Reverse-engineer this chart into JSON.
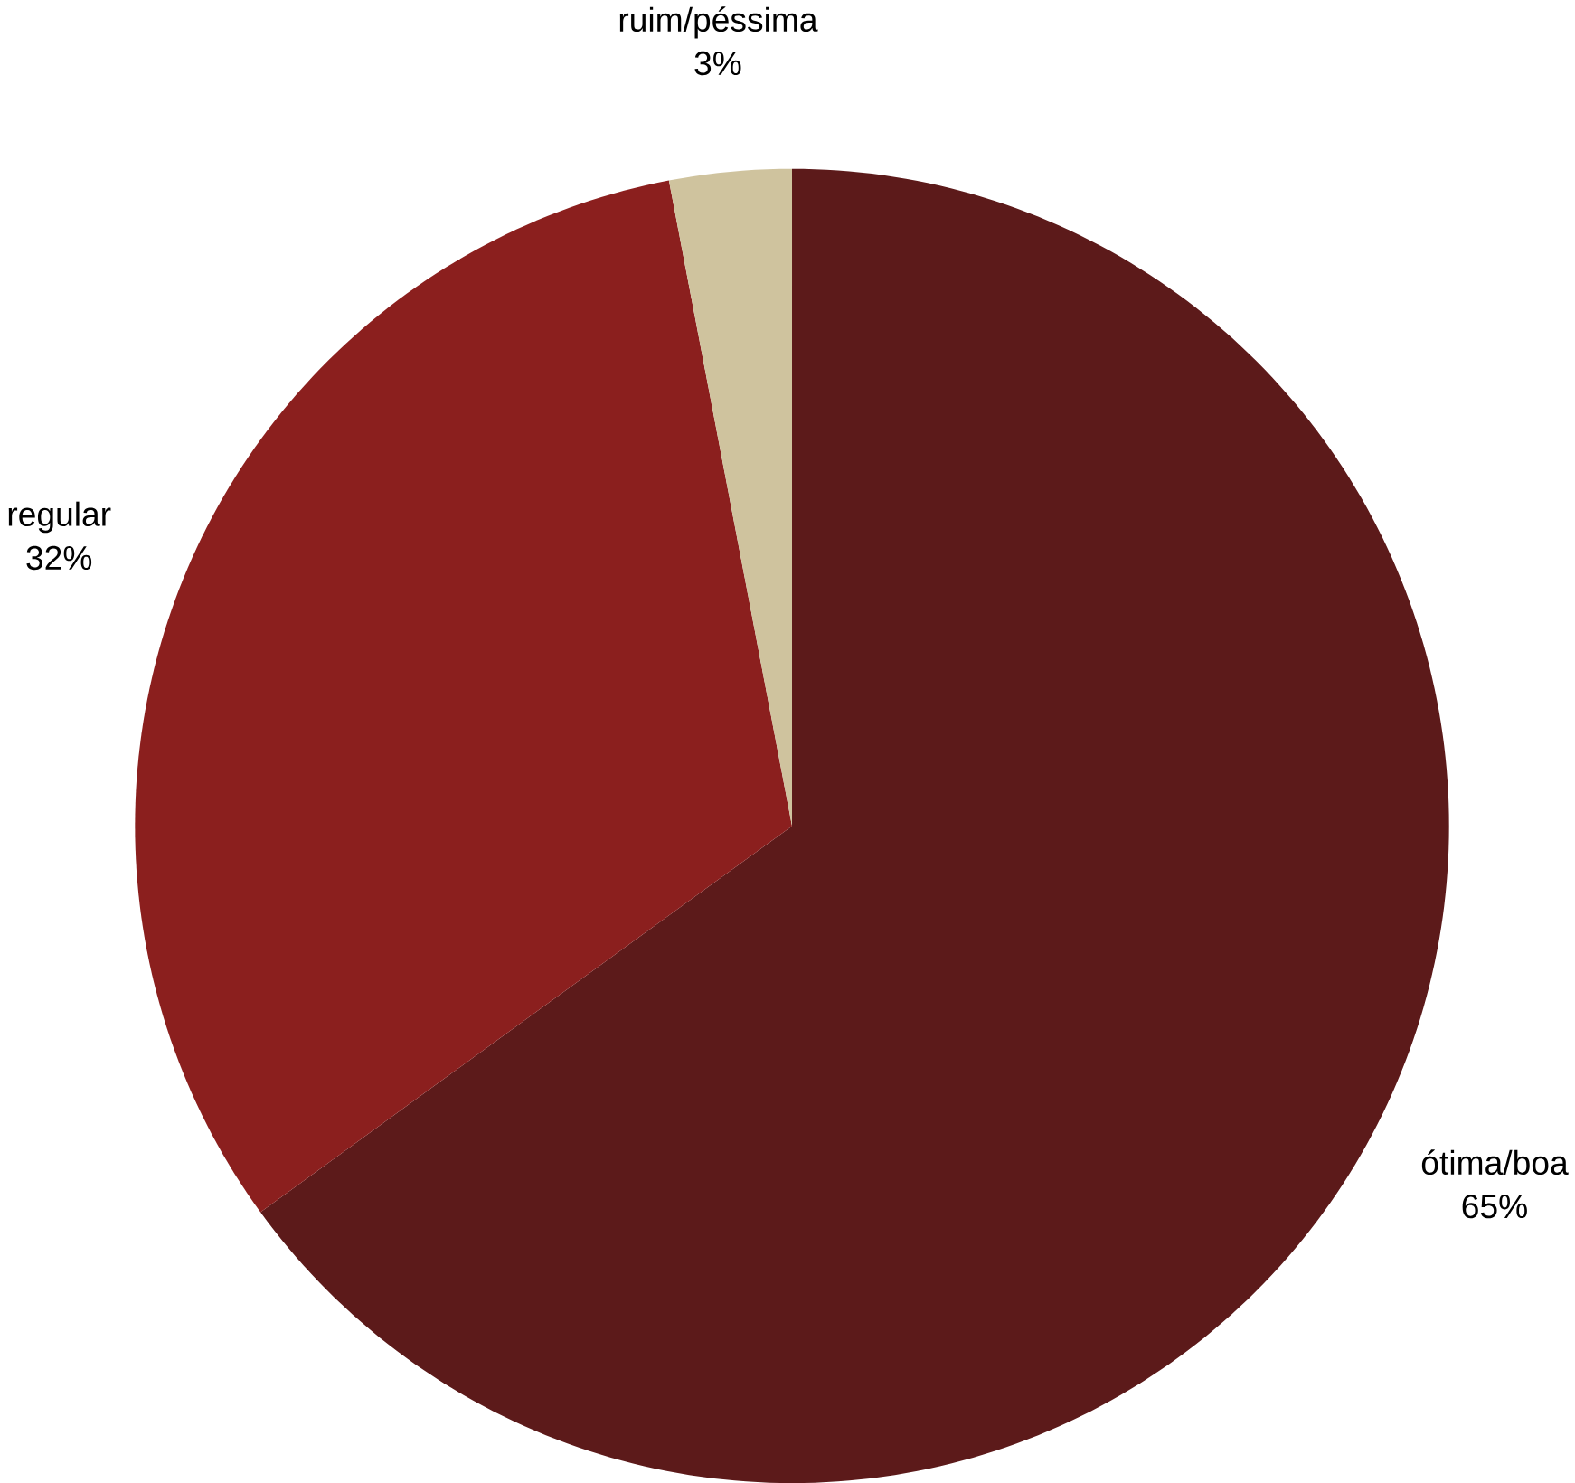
{
  "chart_data": {
    "type": "pie",
    "categories": [
      "ótima/boa",
      "regular",
      "ruim/péssima"
    ],
    "values": [
      65,
      32,
      3
    ],
    "colors": [
      "#5c1a1a",
      "#8b1f1e",
      "#cfc39e"
    ],
    "value_labels": [
      "65%",
      "32%",
      "3%"
    ]
  }
}
